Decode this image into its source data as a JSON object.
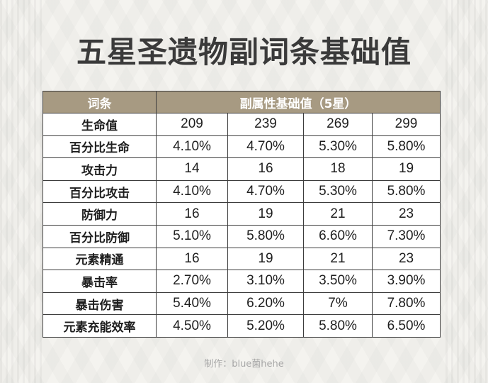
{
  "title": "五星圣遗物副词条基础值",
  "table": {
    "header_label": "词条",
    "header_values": "副属性基础值（5星）",
    "rows": [
      {
        "label": "生命值",
        "values": [
          "209",
          "239",
          "269",
          "299"
        ]
      },
      {
        "label": "百分比生命",
        "values": [
          "4.10%",
          "4.70%",
          "5.30%",
          "5.80%"
        ]
      },
      {
        "label": "攻击力",
        "values": [
          "14",
          "16",
          "18",
          "19"
        ]
      },
      {
        "label": "百分比攻击",
        "values": [
          "4.10%",
          "4.70%",
          "5.30%",
          "5.80%"
        ]
      },
      {
        "label": "防御力",
        "values": [
          "16",
          "19",
          "21",
          "23"
        ]
      },
      {
        "label": "百分比防御",
        "values": [
          "5.10%",
          "5.80%",
          "6.60%",
          "7.30%"
        ]
      },
      {
        "label": "元素精通",
        "values": [
          "16",
          "19",
          "21",
          "23"
        ]
      },
      {
        "label": "暴击率",
        "values": [
          "2.70%",
          "3.10%",
          "3.50%",
          "3.90%"
        ]
      },
      {
        "label": "暴击伤害",
        "values": [
          "5.40%",
          "6.20%",
          "7%",
          "7.80%"
        ]
      },
      {
        "label": "元素充能效率",
        "values": [
          "4.50%",
          "5.20%",
          "5.80%",
          "6.50%"
        ]
      }
    ]
  },
  "credit": "制作：blue菌hehe",
  "colors": {
    "header_bg": "#a79a82",
    "background": "#f4f3ef",
    "title": "#3a3a3a"
  }
}
